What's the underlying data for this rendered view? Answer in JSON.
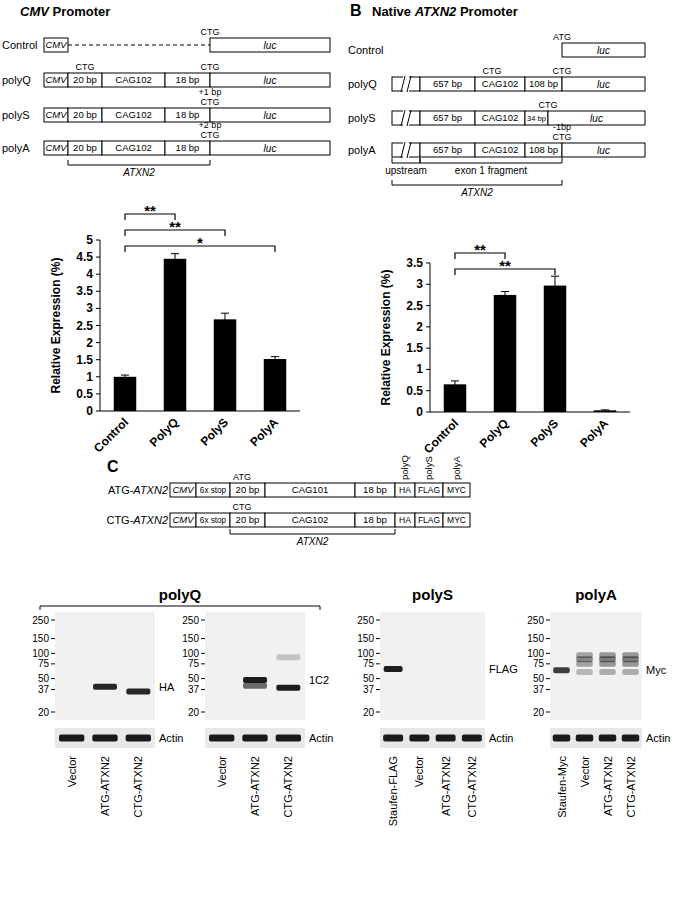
{
  "chart_data": [
    {
      "type": "bar",
      "categories": [
        "Control",
        "PolyQ",
        "PolyS",
        "PolyA"
      ],
      "values": [
        1,
        4.45,
        2.68,
        1.52
      ],
      "errors": [
        0.05,
        0.15,
        0.18,
        0.07
      ],
      "y_label": "Relative Expression (%)",
      "ylim": [
        0,
        5
      ],
      "yticks": [
        0,
        0.5,
        1,
        1.5,
        2,
        2.5,
        3,
        3.5,
        4,
        4.5,
        5
      ],
      "color": "#000000",
      "annotations": [
        {
          "from": "Control",
          "to": "PolyQ",
          "label": "**"
        },
        {
          "from": "Control",
          "to": "PolyS",
          "label": "**"
        },
        {
          "from": "Control",
          "to": "PolyA",
          "label": "*"
        }
      ]
    },
    {
      "type": "bar",
      "categories": [
        "Control",
        "PolyQ",
        "PolyS",
        "PolyA"
      ],
      "values": [
        0.65,
        2.75,
        2.97,
        0.04
      ],
      "errors": [
        0.08,
        0.08,
        0.22,
        0.01
      ],
      "y_label": "Relative Expression (%)",
      "ylim": [
        0,
        3.5
      ],
      "yticks": [
        0,
        0.5,
        1,
        1.5,
        2,
        2.5,
        3,
        3.5
      ],
      "color": "#000000",
      "annotations": [
        {
          "from": "Control",
          "to": "PolyQ",
          "label": "**"
        },
        {
          "from": "Control",
          "to": "PolyS",
          "label": "**"
        }
      ]
    }
  ],
  "diagrams": [
    {
      "title": "CMV Promoter",
      "rows": [
        {
          "name": "Control",
          "promoter": "CMV",
          "codon": "CTG",
          "reporter": "luc"
        },
        {
          "name": "polyQ",
          "promoter": "CMV",
          "segments": [
            "20 bp",
            "CAG102",
            "18 bp"
          ],
          "inner_codon": "CTG",
          "codon": "CTG",
          "reporter": "luc"
        },
        {
          "name": "polyS",
          "promoter": "CMV",
          "segments": [
            "20 bp",
            "CAG102",
            "18 bp"
          ],
          "shift": "+1 bp",
          "codon": "CTG",
          "reporter": "luc"
        },
        {
          "name": "polyA",
          "promoter": "CMV",
          "segments": [
            "20 bp",
            "CAG102",
            "18 bp"
          ],
          "shift": "+2 bp",
          "codon": "CTG",
          "reporter": "luc"
        }
      ],
      "brackets": [
        "ATXN2"
      ]
    },
    {
      "letter": "B",
      "title": "Native ATXN2 Promoter",
      "rows": [
        {
          "name": "Control",
          "codon": "ATG",
          "reporter": "luc"
        },
        {
          "name": "polyQ",
          "segments": [
            "657 bp",
            "CAG102",
            "108 bp"
          ],
          "inner_codon": "CTG",
          "codon": "CTG",
          "reporter": "luc"
        },
        {
          "name": "polyS",
          "segments": [
            "657 bp",
            "CAG102",
            "34 bp"
          ],
          "codon": "CTG",
          "reporter": "luc"
        },
        {
          "name": "polyA",
          "segments": [
            "657 bp",
            "CAG102",
            "108 bp"
          ],
          "shift": "-1bp",
          "codon": "CTG",
          "reporter": "luc"
        }
      ],
      "brackets": [
        "upstream",
        "exon 1 fragment",
        "ATXN2"
      ]
    }
  ],
  "construct_panel": {
    "letter": "C",
    "rows": [
      {
        "name": "ATG-ATXN2",
        "promoter": "CMV",
        "stop": "6x stop",
        "codon": "ATG",
        "segments": [
          "20 bp",
          "CAG101",
          "18 bp"
        ],
        "tags": [
          "HA",
          "FLAG",
          "MYC"
        ]
      },
      {
        "name": "CTG-ATXN2",
        "promoter": "CMV",
        "stop": "6x stop",
        "codon": "CTG",
        "segments": [
          "20 bp",
          "CAG102",
          "18 bp"
        ],
        "tags": [
          "HA",
          "FLAG",
          "MYC"
        ]
      }
    ],
    "frames": [
      "polyQ",
      "polyS",
      "polyA"
    ],
    "brackets": [
      "ATXN2"
    ]
  },
  "blot_groups": [
    {
      "label": "polyQ",
      "blots": [
        {
          "antibody": "HA",
          "markers": [
            250,
            150,
            100,
            75,
            50,
            37,
            20
          ],
          "lanes": [
            "Vector",
            "ATG-ATXN2",
            "CTG-ATXN2"
          ],
          "bands": [
            {
              "lane": 1,
              "kDa": 40,
              "intensity": 0.9
            },
            {
              "lane": 2,
              "kDa": 35,
              "intensity": 0.9
            }
          ],
          "loading": "Actin"
        },
        {
          "antibody": "1C2",
          "markers": [
            250,
            150,
            100,
            75,
            50,
            37,
            20
          ],
          "lanes": [
            "Vector",
            "ATG-ATXN2",
            "CTG-ATXN2"
          ],
          "bands": [
            {
              "lane": 1,
              "kDa": 48,
              "intensity": 0.95
            },
            {
              "lane": 1,
              "kDa": 41,
              "intensity": 0.6
            },
            {
              "lane": 2,
              "kDa": 39,
              "intensity": 0.95
            },
            {
              "lane": 2,
              "kDa": 90,
              "intensity": 0.2
            }
          ],
          "loading": "Actin"
        }
      ]
    },
    {
      "label": "polyS",
      "blots": [
        {
          "antibody": "FLAG",
          "markers": [
            250,
            150,
            100,
            75,
            50,
            37,
            20
          ],
          "lanes": [
            "Staufen-FLAG",
            "Vector",
            "ATG-ATXN2",
            "CTG-ATXN2"
          ],
          "bands": [
            {
              "lane": 0,
              "kDa": 65,
              "intensity": 0.95
            }
          ],
          "loading": "Actin"
        }
      ]
    },
    {
      "label": "polyA",
      "blots": [
        {
          "antibody": "Myc",
          "markers": [
            250,
            150,
            100,
            75,
            50,
            37,
            20
          ],
          "lanes": [
            "Staufen-Myc",
            "Vector",
            "ATG-ATXN2",
            "CTG-ATXN2"
          ],
          "bands": [
            {
              "lane": 0,
              "kDa": 63,
              "intensity": 0.8
            },
            {
              "lane": 1,
              "kDa": 95,
              "intensity": 0.35
            },
            {
              "lane": 1,
              "kDa": 85,
              "intensity": 0.45
            },
            {
              "lane": 1,
              "kDa": 75,
              "intensity": 0.35
            },
            {
              "lane": 1,
              "kDa": 60,
              "intensity": 0.25
            },
            {
              "lane": 2,
              "kDa": 95,
              "intensity": 0.4
            },
            {
              "lane": 2,
              "kDa": 85,
              "intensity": 0.5
            },
            {
              "lane": 2,
              "kDa": 75,
              "intensity": 0.4
            },
            {
              "lane": 2,
              "kDa": 60,
              "intensity": 0.3
            },
            {
              "lane": 3,
              "kDa": 95,
              "intensity": 0.4
            },
            {
              "lane": 3,
              "kDa": 85,
              "intensity": 0.5
            },
            {
              "lane": 3,
              "kDa": 75,
              "intensity": 0.4
            },
            {
              "lane": 3,
              "kDa": 60,
              "intensity": 0.3
            }
          ],
          "loading": "Actin"
        }
      ]
    }
  ]
}
